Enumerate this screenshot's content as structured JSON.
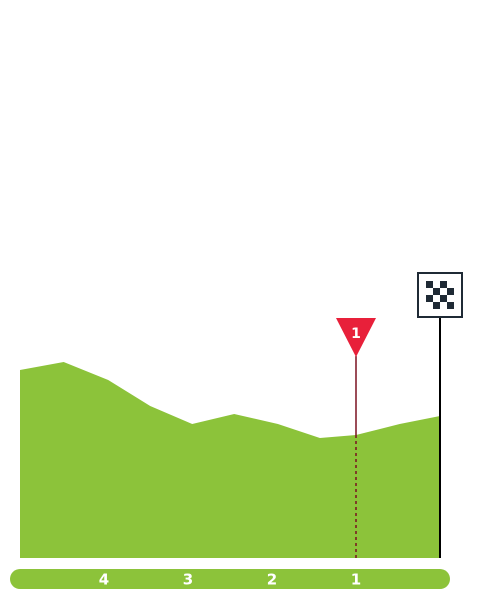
{
  "chart_data": {
    "type": "area",
    "x": [
      5,
      4.48,
      3.95,
      3.45,
      2.95,
      2.45,
      1.93,
      1.43,
      1,
      0.48,
      0
    ],
    "values": [
      188,
      196,
      178,
      152,
      134,
      144,
      134,
      120,
      123,
      134,
      142
    ],
    "color": "#8cc33a",
    "xlim": [
      5,
      0
    ],
    "ylim": [
      0,
      200
    ],
    "xticks": [
      4,
      3,
      2,
      1
    ],
    "annotations": [
      {
        "x": 1,
        "text": "1",
        "color": "#e8203a"
      }
    ],
    "finish_x": 0
  }
}
